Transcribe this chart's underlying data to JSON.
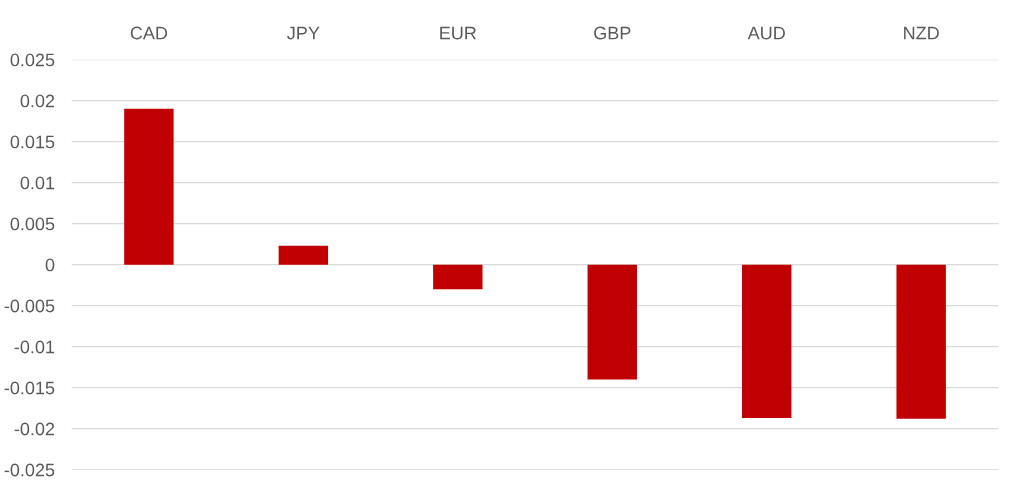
{
  "chart_data": {
    "type": "bar",
    "categories": [
      "CAD",
      "JPY",
      "EUR",
      "GBP",
      "AUD",
      "NZD"
    ],
    "values": [
      0.019,
      0.0023,
      -0.003,
      -0.014,
      -0.0187,
      -0.0188
    ],
    "color": "#c00000",
    "ylim": [
      -0.025,
      0.025
    ],
    "yticks": [
      {
        "value": -0.025,
        "label": "-0.025"
      },
      {
        "value": -0.02,
        "label": "-0.02"
      },
      {
        "value": -0.015,
        "label": "-0.015"
      },
      {
        "value": -0.01,
        "label": "-0.01"
      },
      {
        "value": -0.005,
        "label": "-0.005"
      },
      0,
      0.005,
      0.01,
      0.015,
      0.02,
      0.025
    ],
    "grid": "y"
  }
}
